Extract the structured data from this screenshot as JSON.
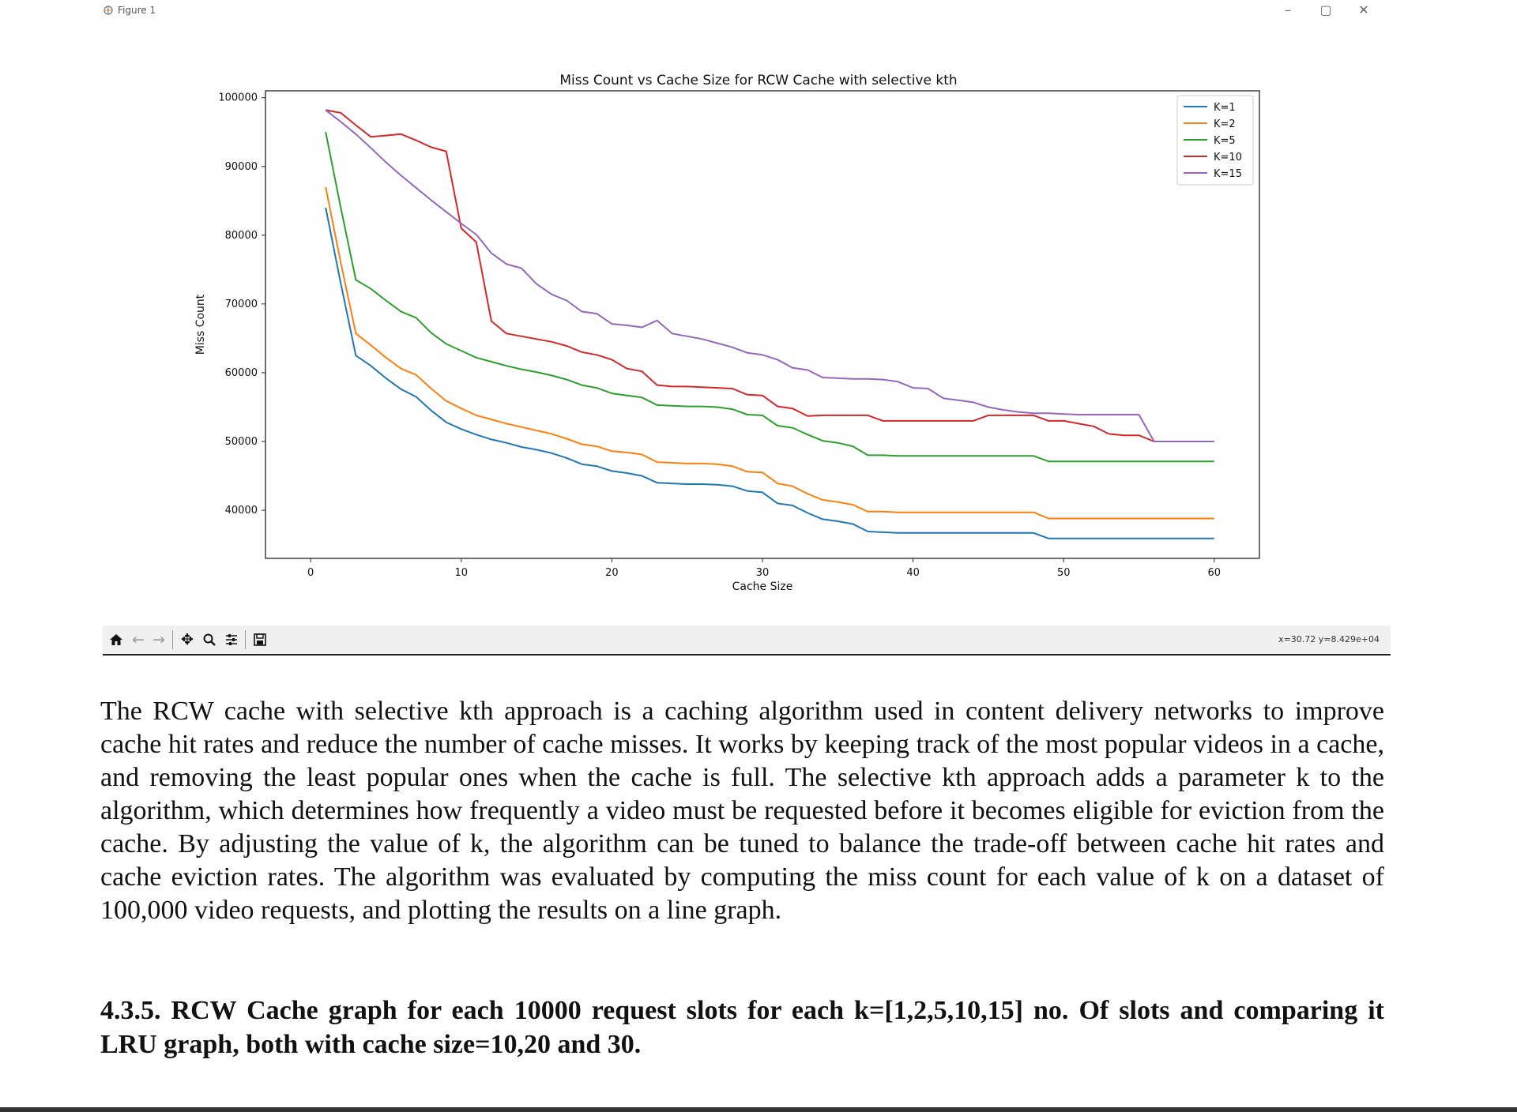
{
  "window": {
    "title": "Figure 1",
    "minimize_glyph": "–",
    "maximize_glyph": "▢",
    "close_glyph": "✕"
  },
  "toolbar": {
    "icons": [
      "home-icon",
      "back-arrow-icon",
      "forward-arrow-icon",
      "pan-icon",
      "zoom-icon",
      "configure-subplots-icon",
      "save-icon"
    ],
    "coord_readout": "x=30.72 y=8.429e+04"
  },
  "chart_data": {
    "type": "line",
    "title": "Miss Count vs Cache Size for RCW Cache with selective kth",
    "xlabel": "Cache Size",
    "ylabel": "Miss Count",
    "xlim": [
      -3,
      63
    ],
    "ylim": [
      33000,
      101000
    ],
    "xticks": [
      0,
      10,
      20,
      30,
      40,
      50,
      60
    ],
    "yticks": [
      40000,
      50000,
      60000,
      70000,
      80000,
      90000,
      100000
    ],
    "legend_position": "top-right",
    "grid": false,
    "x": [
      1,
      2,
      3,
      4,
      5,
      6,
      7,
      8,
      9,
      10,
      11,
      12,
      13,
      14,
      15,
      16,
      17,
      18,
      19,
      20,
      21,
      22,
      23,
      24,
      25,
      26,
      27,
      28,
      29,
      30,
      31,
      32,
      33,
      34,
      35,
      36,
      37,
      38,
      39,
      40,
      41,
      42,
      43,
      44,
      45,
      46,
      47,
      48,
      49,
      50,
      51,
      52,
      53,
      54,
      55,
      56,
      57,
      58,
      59,
      60
    ],
    "series": [
      {
        "name": "K=1",
        "color": "#1f77b4",
        "values": [
          84000,
          73000,
          62500,
          61000,
          59200,
          57600,
          56500,
          54500,
          52800,
          51800,
          51000,
          50300,
          49800,
          49200,
          48800,
          48300,
          47600,
          46700,
          46400,
          45700,
          45400,
          45000,
          44000,
          43900,
          43800,
          43800,
          43700,
          43500,
          42800,
          42600,
          41000,
          40700,
          39600,
          38700,
          38400,
          38000,
          36900,
          36800,
          36700,
          36700,
          36700,
          36700,
          36700,
          36700,
          36700,
          36700,
          36700,
          36700,
          35900,
          35900,
          35900,
          35900,
          35900,
          35900,
          35900,
          35900,
          35900,
          35900,
          35900,
          35900
        ]
      },
      {
        "name": "K=2",
        "color": "#ff7f0e",
        "values": [
          87000,
          76000,
          65700,
          64000,
          62200,
          60600,
          59700,
          57700,
          55900,
          54800,
          53800,
          53200,
          52600,
          52100,
          51600,
          51100,
          50400,
          49600,
          49300,
          48600,
          48400,
          48100,
          47000,
          46900,
          46800,
          46800,
          46700,
          46400,
          45600,
          45500,
          43900,
          43500,
          42400,
          41500,
          41200,
          40800,
          39800,
          39800,
          39700,
          39700,
          39700,
          39700,
          39700,
          39700,
          39700,
          39700,
          39700,
          39700,
          38800,
          38800,
          38800,
          38800,
          38800,
          38800,
          38800,
          38800,
          38800,
          38800,
          38800,
          38800
        ]
      },
      {
        "name": "K=5",
        "color": "#2ca02c",
        "values": [
          95000,
          84000,
          73500,
          72200,
          70500,
          68900,
          68000,
          65800,
          64200,
          63200,
          62200,
          61600,
          61000,
          60500,
          60100,
          59600,
          59000,
          58200,
          57800,
          57000,
          56700,
          56400,
          55300,
          55200,
          55100,
          55100,
          55000,
          54700,
          53900,
          53800,
          52300,
          52000,
          51000,
          50100,
          49800,
          49300,
          48000,
          48000,
          47900,
          47900,
          47900,
          47900,
          47900,
          47900,
          47900,
          47900,
          47900,
          47900,
          47100,
          47100,
          47100,
          47100,
          47100,
          47100,
          47100,
          47100,
          47100,
          47100,
          47100,
          47100
        ]
      },
      {
        "name": "K=10",
        "color": "#d62728",
        "values": [
          98200,
          97800,
          96000,
          94300,
          94500,
          94700,
          93800,
          92800,
          92200,
          81000,
          79000,
          67500,
          65700,
          65300,
          64900,
          64500,
          63900,
          63000,
          62600,
          61900,
          60600,
          60200,
          58200,
          58000,
          58000,
          57900,
          57800,
          57700,
          56800,
          56700,
          55100,
          54800,
          53700,
          53800,
          53800,
          53800,
          53800,
          53000,
          53000,
          53000,
          53000,
          53000,
          53000,
          53000,
          53800,
          53800,
          53800,
          53800,
          53000,
          53000,
          52600,
          52200,
          51100,
          50900,
          50900,
          50000,
          50000,
          50000,
          50000,
          50000
        ]
      },
      {
        "name": "K=15",
        "color": "#9467bd",
        "values": [
          98200,
          96500,
          94700,
          92700,
          90600,
          88700,
          86900,
          85100,
          83400,
          81700,
          80100,
          77400,
          75800,
          75200,
          72900,
          71400,
          70500,
          68900,
          68600,
          67100,
          66900,
          66600,
          67600,
          65700,
          65300,
          64900,
          64300,
          63700,
          62900,
          62600,
          61900,
          60700,
          60400,
          59300,
          59200,
          59100,
          59100,
          59000,
          58700,
          57800,
          57700,
          56300,
          56000,
          55700,
          55000,
          54600,
          54300,
          54100,
          54100,
          54000,
          53900,
          53900,
          53900,
          53900,
          53900,
          50000,
          50000,
          50000,
          50000,
          50000
        ]
      }
    ]
  },
  "text": {
    "paragraph": "The RCW cache with selective kth approach is a caching algorithm used in content delivery networks to improve cache hit rates and reduce the number of cache misses. It works by keeping track of the most popular videos in a cache, and removing the least popular ones when the cache is full. The selective kth approach adds a parameter k to the algorithm, which determines how frequently a video must be requested before it becomes eligible for eviction from the cache. By adjusting the value of k, the algorithm can be tuned to balance the trade-off between cache hit rates and cache eviction rates. The algorithm was evaluated by computing the miss count for each value of k on a dataset of 100,000 video requests, and plotting the results on a line graph.",
    "heading": "4.3.5. RCW Cache graph for each 10000 request slots for each k=[1,2,5,10,15] no. Of slots and comparing it LRU graph, both with cache size=10,20 and 30."
  }
}
